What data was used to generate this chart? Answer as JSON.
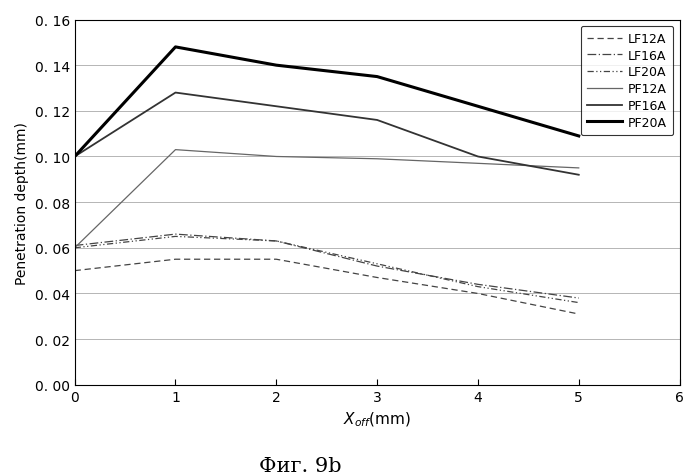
{
  "title": "Фиг. 9b",
  "xlabel": "X₀ff(mm)",
  "ylabel": "Penetration depth(mm)",
  "xlim": [
    0,
    6
  ],
  "ylim": [
    0.0,
    0.16
  ],
  "yticks": [
    0.0,
    0.02,
    0.04,
    0.06,
    0.08,
    0.1,
    0.12,
    0.14,
    0.16
  ],
  "xticks": [
    0,
    1,
    2,
    3,
    4,
    5,
    6
  ],
  "series": {
    "LF12A": {
      "x": [
        0,
        1,
        2,
        3,
        4,
        5
      ],
      "y": [
        0.05,
        0.055,
        0.055,
        0.047,
        0.04,
        0.031
      ],
      "linestyle": "dashed",
      "linewidth": 0.9,
      "color": "#444444"
    },
    "LF16A": {
      "x": [
        0,
        1,
        2,
        3,
        4,
        5
      ],
      "y": [
        0.061,
        0.066,
        0.063,
        0.052,
        0.044,
        0.038
      ],
      "linestyle": "dashdot",
      "linewidth": 0.9,
      "color": "#444444"
    },
    "LF20A": {
      "x": [
        0,
        1,
        2,
        3,
        4,
        5
      ],
      "y": [
        0.06,
        0.065,
        0.063,
        0.053,
        0.043,
        0.036
      ],
      "linestyle": "dashdotdot",
      "linewidth": 0.9,
      "color": "#444444"
    },
    "PF12A": {
      "x": [
        0,
        1,
        2,
        3,
        4,
        5
      ],
      "y": [
        0.06,
        0.103,
        0.1,
        0.099,
        0.097,
        0.095
      ],
      "linestyle": "solid",
      "linewidth": 0.9,
      "color": "#666666"
    },
    "PF16A": {
      "x": [
        0,
        1,
        2,
        3,
        4,
        5
      ],
      "y": [
        0.1,
        0.128,
        0.122,
        0.116,
        0.1,
        0.092
      ],
      "linestyle": "solid",
      "linewidth": 1.3,
      "color": "#333333"
    },
    "PF20A": {
      "x": [
        0,
        1,
        2,
        3,
        4,
        5
      ],
      "y": [
        0.1,
        0.148,
        0.14,
        0.135,
        0.122,
        0.109
      ],
      "linestyle": "solid",
      "linewidth": 2.2,
      "color": "#000000"
    }
  },
  "bg_color": "#f5f5f5",
  "grid_color": "#aaaaaa",
  "legend_entries": [
    "LF12A",
    "LF16A",
    "LF20A",
    "PF12A",
    "PF16A",
    "PF20A"
  ]
}
